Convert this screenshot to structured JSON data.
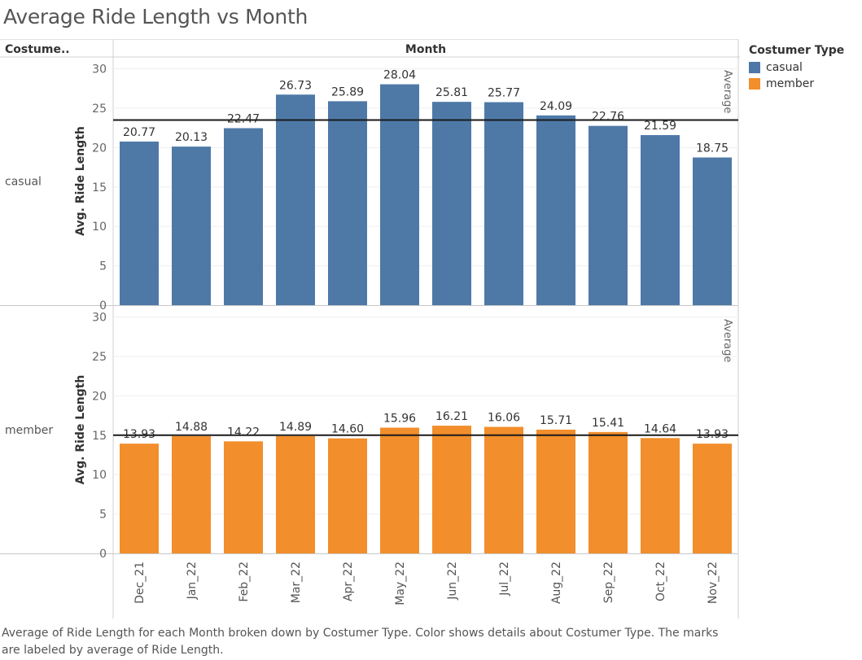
{
  "title": "Average Ride Length vs Month",
  "caption": "Average of Ride Length for each Month broken down by Costumer Type.  Color shows details about Costumer Type.  The marks are labeled by average of Ride Length.",
  "column_header": "Month",
  "row_header": "Costume..",
  "legend": {
    "title": "Costumer Type",
    "items": [
      {
        "label": "casual",
        "color": "#4e79a7"
      },
      {
        "label": "member",
        "color": "#f28e2b"
      }
    ]
  },
  "chart_data": {
    "type": "bar",
    "categories": [
      "Dec_21",
      "Jan_22",
      "Feb_22",
      "Mar_22",
      "Apr_22",
      "May_22",
      "Jun_22",
      "Jul_22",
      "Aug_22",
      "Sep_22",
      "Oct_22",
      "Nov_22"
    ],
    "ylabel": "Avg. Ride Length",
    "xlabel": "",
    "ylim": [
      0,
      31
    ],
    "yticks": [
      0,
      5,
      10,
      15,
      20,
      25,
      30
    ],
    "value_labels": true,
    "reference_line_label": "Average",
    "panels": [
      {
        "name": "casual",
        "color": "#4e79a7",
        "values": [
          20.77,
          20.13,
          22.47,
          26.73,
          25.89,
          28.04,
          25.81,
          25.77,
          24.09,
          22.76,
          21.59,
          18.75
        ],
        "labels": [
          "20.77",
          "20.13",
          "22.47",
          "26.73",
          "25.89",
          "28.04",
          "25.81",
          "25.77",
          "24.09",
          "22.76",
          "21.59",
          "18.75"
        ],
        "average": 23.5
      },
      {
        "name": "member",
        "color": "#f28e2b",
        "values": [
          13.93,
          14.88,
          14.22,
          14.89,
          14.6,
          15.96,
          16.21,
          16.06,
          15.71,
          15.41,
          14.64,
          13.93
        ],
        "labels": [
          "13.93",
          "14.88",
          "14.22",
          "14.89",
          "14.60",
          "15.96",
          "16.21",
          "16.06",
          "15.71",
          "15.41",
          "14.64",
          "13.93"
        ],
        "average": 15.0
      }
    ]
  }
}
